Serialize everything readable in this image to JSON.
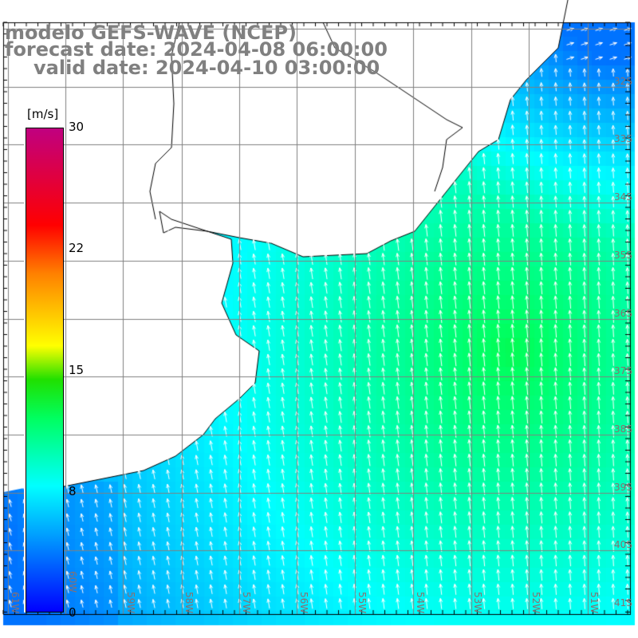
{
  "title": {
    "model": "modelo GEFS-WAVE (NCEP)",
    "forecast": "forecast date: 2024-04-08 06:00:00",
    "valid": "valid date: 2024-04-10 03:00:00"
  },
  "colorbar": {
    "units": "[m/s]",
    "ticks": [
      "30",
      "22",
      "15",
      "8",
      "0"
    ],
    "tick_values": [
      30,
      22,
      15,
      8,
      0
    ]
  },
  "lat_labels": [
    "32S",
    "33S",
    "34S",
    "35S",
    "36S",
    "37S",
    "38S",
    "39S",
    "40S",
    "41S"
  ],
  "lon_labels": [
    "61W",
    "60W",
    "59W",
    "58W",
    "57W",
    "56W",
    "55W",
    "54W",
    "53W",
    "52W",
    "51W"
  ],
  "colors": {
    "land": "#ffffff",
    "grid": "#808080",
    "coast": "#000000",
    "arrow": "#ffffff"
  }
}
